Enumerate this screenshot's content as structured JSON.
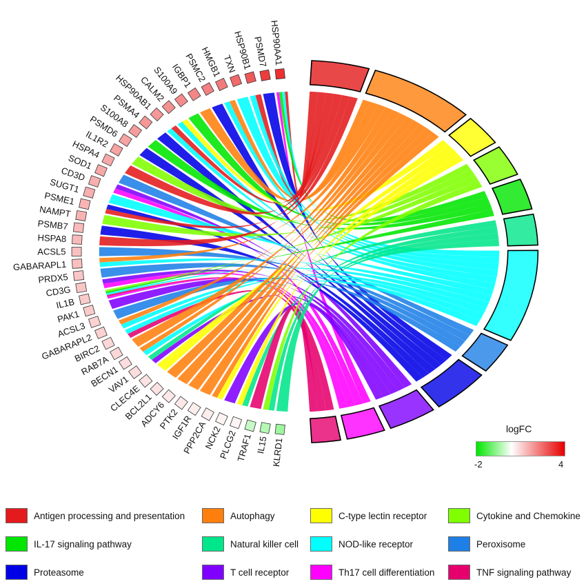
{
  "chart_data": {
    "type": "chord",
    "genes": [
      {
        "name": "HSP90AA1",
        "logFC": 3.6
      },
      {
        "name": "PSMD7",
        "logFC": 3.4
      },
      {
        "name": "HSP90B1",
        "logFC": 2.9
      },
      {
        "name": "TXN",
        "logFC": 2.6
      },
      {
        "name": "HMGB1",
        "logFC": 2.3
      },
      {
        "name": "PSMC2",
        "logFC": 2.2
      },
      {
        "name": "IGBP1",
        "logFC": 2.1
      },
      {
        "name": "S100A9",
        "logFC": 2.0
      },
      {
        "name": "CALM2",
        "logFC": 1.9
      },
      {
        "name": "HSP90AB1",
        "logFC": 1.8
      },
      {
        "name": "PSMA4",
        "logFC": 1.8
      },
      {
        "name": "S100A8",
        "logFC": 1.7
      },
      {
        "name": "PSMD6",
        "logFC": 1.6
      },
      {
        "name": "IL1R2",
        "logFC": 1.6
      },
      {
        "name": "HSPA4",
        "logFC": 1.5
      },
      {
        "name": "SOD1",
        "logFC": 1.5
      },
      {
        "name": "CD3D",
        "logFC": 1.4
      },
      {
        "name": "SUGT1",
        "logFC": 1.4
      },
      {
        "name": "PSME1",
        "logFC": 1.3
      },
      {
        "name": "NAMPT",
        "logFC": 1.3
      },
      {
        "name": "PSMB7",
        "logFC": 1.2
      },
      {
        "name": "HSPA8",
        "logFC": 1.2
      },
      {
        "name": "ACSL5",
        "logFC": 1.1
      },
      {
        "name": "GABARAPL1",
        "logFC": 1.1
      },
      {
        "name": "PRDX5",
        "logFC": 1.0
      },
      {
        "name": "CD3G",
        "logFC": 1.0
      },
      {
        "name": "IL1B",
        "logFC": 0.9
      },
      {
        "name": "PAK1",
        "logFC": 0.9
      },
      {
        "name": "ACSL3",
        "logFC": 0.8
      },
      {
        "name": "GABARAPL2",
        "logFC": 0.8
      },
      {
        "name": "BIRC2",
        "logFC": 0.7
      },
      {
        "name": "RAB7A",
        "logFC": 0.7
      },
      {
        "name": "BECN1",
        "logFC": 0.6
      },
      {
        "name": "VAV1",
        "logFC": 0.6
      },
      {
        "name": "CLEC4E",
        "logFC": 0.5
      },
      {
        "name": "BCL2L1",
        "logFC": 0.5
      },
      {
        "name": "ADCY6",
        "logFC": 0.4
      },
      {
        "name": "PTK2",
        "logFC": 0.4
      },
      {
        "name": "IGF1R",
        "logFC": 0.3
      },
      {
        "name": "PPP2CA",
        "logFC": 0.3
      },
      {
        "name": "NCK2",
        "logFC": 0.2
      },
      {
        "name": "PLCG2",
        "logFC": 0.2
      },
      {
        "name": "TRAF1",
        "logFC": -0.6
      },
      {
        "name": "IL15",
        "logFC": -0.8
      },
      {
        "name": "KLRD1",
        "logFC": -1.0
      }
    ],
    "pathways": [
      {
        "name": "Antigen processing and presentation",
        "color": "#e41a1c"
      },
      {
        "name": "Autophagy",
        "color": "#ff7f0e"
      },
      {
        "name": "C-type lectin receptor",
        "color": "#ffff00"
      },
      {
        "name": "Cytokine and Chemokine",
        "color": "#7fff00"
      },
      {
        "name": "IL-17 signaling pathway",
        "color": "#00e600"
      },
      {
        "name": "Natural killer cell",
        "color": "#00e68a"
      },
      {
        "name": "NOD-like receptor",
        "color": "#00ffff"
      },
      {
        "name": "Peroxisome",
        "color": "#1e7fe6"
      },
      {
        "name": "Proteasome",
        "color": "#0000e6"
      },
      {
        "name": "T cell receptor",
        "color": "#8000ff"
      },
      {
        "name": "Th17 cell differentiation",
        "color": "#ff00ff"
      },
      {
        "name": "TNF signaling pathway",
        "color": "#e6006e"
      }
    ],
    "links": [
      {
        "gene": "HSP90AA1",
        "pathway": "Antigen processing and presentation"
      },
      {
        "gene": "HSP90AA1",
        "pathway": "NOD-like receptor"
      },
      {
        "gene": "HSP90AA1",
        "pathway": "IL-17 signaling pathway"
      },
      {
        "gene": "HSP90AA1",
        "pathway": "Th17 cell differentiation"
      },
      {
        "gene": "PSMD7",
        "pathway": "Proteasome"
      },
      {
        "gene": "HSP90B1",
        "pathway": "Antigen processing and presentation"
      },
      {
        "gene": "HSP90B1",
        "pathway": "NOD-like receptor"
      },
      {
        "gene": "TXN",
        "pathway": "NOD-like receptor"
      },
      {
        "gene": "HMGB1",
        "pathway": "Autophagy"
      },
      {
        "gene": "HMGB1",
        "pathway": "NOD-like receptor"
      },
      {
        "gene": "PSMC2",
        "pathway": "Proteasome"
      },
      {
        "gene": "IGBP1",
        "pathway": "Autophagy"
      },
      {
        "gene": "S100A9",
        "pathway": "IL-17 signaling pathway"
      },
      {
        "gene": "CALM2",
        "pathway": "C-type lectin receptor"
      },
      {
        "gene": "CALM2",
        "pathway": "NOD-like receptor"
      },
      {
        "gene": "HSP90AB1",
        "pathway": "Antigen processing and presentation"
      },
      {
        "gene": "HSP90AB1",
        "pathway": "NOD-like receptor"
      },
      {
        "gene": "PSMA4",
        "pathway": "Proteasome"
      },
      {
        "gene": "S100A8",
        "pathway": "IL-17 signaling pathway"
      },
      {
        "gene": "PSMD6",
        "pathway": "Proteasome"
      },
      {
        "gene": "IL1R2",
        "pathway": "Cytokine and Chemokine"
      },
      {
        "gene": "HSPA4",
        "pathway": "Antigen processing and presentation"
      },
      {
        "gene": "SOD1",
        "pathway": "Peroxisome"
      },
      {
        "gene": "CD3D",
        "pathway": "T cell receptor"
      },
      {
        "gene": "CD3D",
        "pathway": "Th17 cell differentiation"
      },
      {
        "gene": "SUGT1",
        "pathway": "NOD-like receptor"
      },
      {
        "gene": "PSME1",
        "pathway": "Proteasome"
      },
      {
        "gene": "PSME1",
        "pathway": "Antigen processing and presentation"
      },
      {
        "gene": "NAMPT",
        "pathway": "Cytokine and Chemokine"
      },
      {
        "gene": "PSMB7",
        "pathway": "Proteasome"
      },
      {
        "gene": "HSPA8",
        "pathway": "Antigen processing and presentation"
      },
      {
        "gene": "ACSL5",
        "pathway": "Peroxisome"
      },
      {
        "gene": "GABARAPL1",
        "pathway": "Autophagy"
      },
      {
        "gene": "GABARAPL1",
        "pathway": "NOD-like receptor"
      },
      {
        "gene": "PRDX5",
        "pathway": "Peroxisome"
      },
      {
        "gene": "CD3G",
        "pathway": "T cell receptor"
      },
      {
        "gene": "CD3G",
        "pathway": "Th17 cell differentiation"
      },
      {
        "gene": "IL1B",
        "pathway": "Cytokine and Chemokine"
      },
      {
        "gene": "IL1B",
        "pathway": "IL-17 signaling pathway"
      },
      {
        "gene": "IL1B",
        "pathway": "NOD-like receptor"
      },
      {
        "gene": "IL1B",
        "pathway": "TNF signaling pathway"
      },
      {
        "gene": "IL1B",
        "pathway": "Th17 cell differentiation"
      },
      {
        "gene": "PAK1",
        "pathway": "T cell receptor"
      },
      {
        "gene": "ACSL3",
        "pathway": "Peroxisome"
      },
      {
        "gene": "GABARAPL2",
        "pathway": "Autophagy"
      },
      {
        "gene": "GABARAPL2",
        "pathway": "NOD-like receptor"
      },
      {
        "gene": "BIRC2",
        "pathway": "NOD-like receptor"
      },
      {
        "gene": "BIRC2",
        "pathway": "TNF signaling pathway"
      },
      {
        "gene": "RAB7A",
        "pathway": "Autophagy"
      },
      {
        "gene": "BECN1",
        "pathway": "Autophagy"
      },
      {
        "gene": "BECN1",
        "pathway": "NOD-like receptor"
      },
      {
        "gene": "VAV1",
        "pathway": "Natural killer cell"
      },
      {
        "gene": "VAV1",
        "pathway": "T cell receptor"
      },
      {
        "gene": "CLEC4E",
        "pathway": "C-type lectin receptor"
      },
      {
        "gene": "BCL2L1",
        "pathway": "Autophagy"
      },
      {
        "gene": "ADCY6",
        "pathway": "Autophagy"
      },
      {
        "gene": "PTK2",
        "pathway": "Autophagy"
      },
      {
        "gene": "IGF1R",
        "pathway": "Autophagy"
      },
      {
        "gene": "PPP2CA",
        "pathway": "Autophagy"
      },
      {
        "gene": "PPP2CA",
        "pathway": "C-type lectin receptor"
      },
      {
        "gene": "NCK2",
        "pathway": "T cell receptor"
      },
      {
        "gene": "PLCG2",
        "pathway": "C-type lectin receptor"
      },
      {
        "gene": "PLCG2",
        "pathway": "Natural killer cell"
      },
      {
        "gene": "TRAF1",
        "pathway": "TNF signaling pathway"
      },
      {
        "gene": "IL15",
        "pathway": "Cytokine and Chemokine"
      },
      {
        "gene": "IL15",
        "pathway": "Natural killer cell"
      },
      {
        "gene": "KLRD1",
        "pathway": "Natural killer cell"
      }
    ],
    "colorbar": {
      "title": "logFC",
      "min_label": "-2",
      "max_label": "4",
      "low_color": "#00e600",
      "mid_color": "#ffffff",
      "high_color": "#e60000"
    }
  }
}
